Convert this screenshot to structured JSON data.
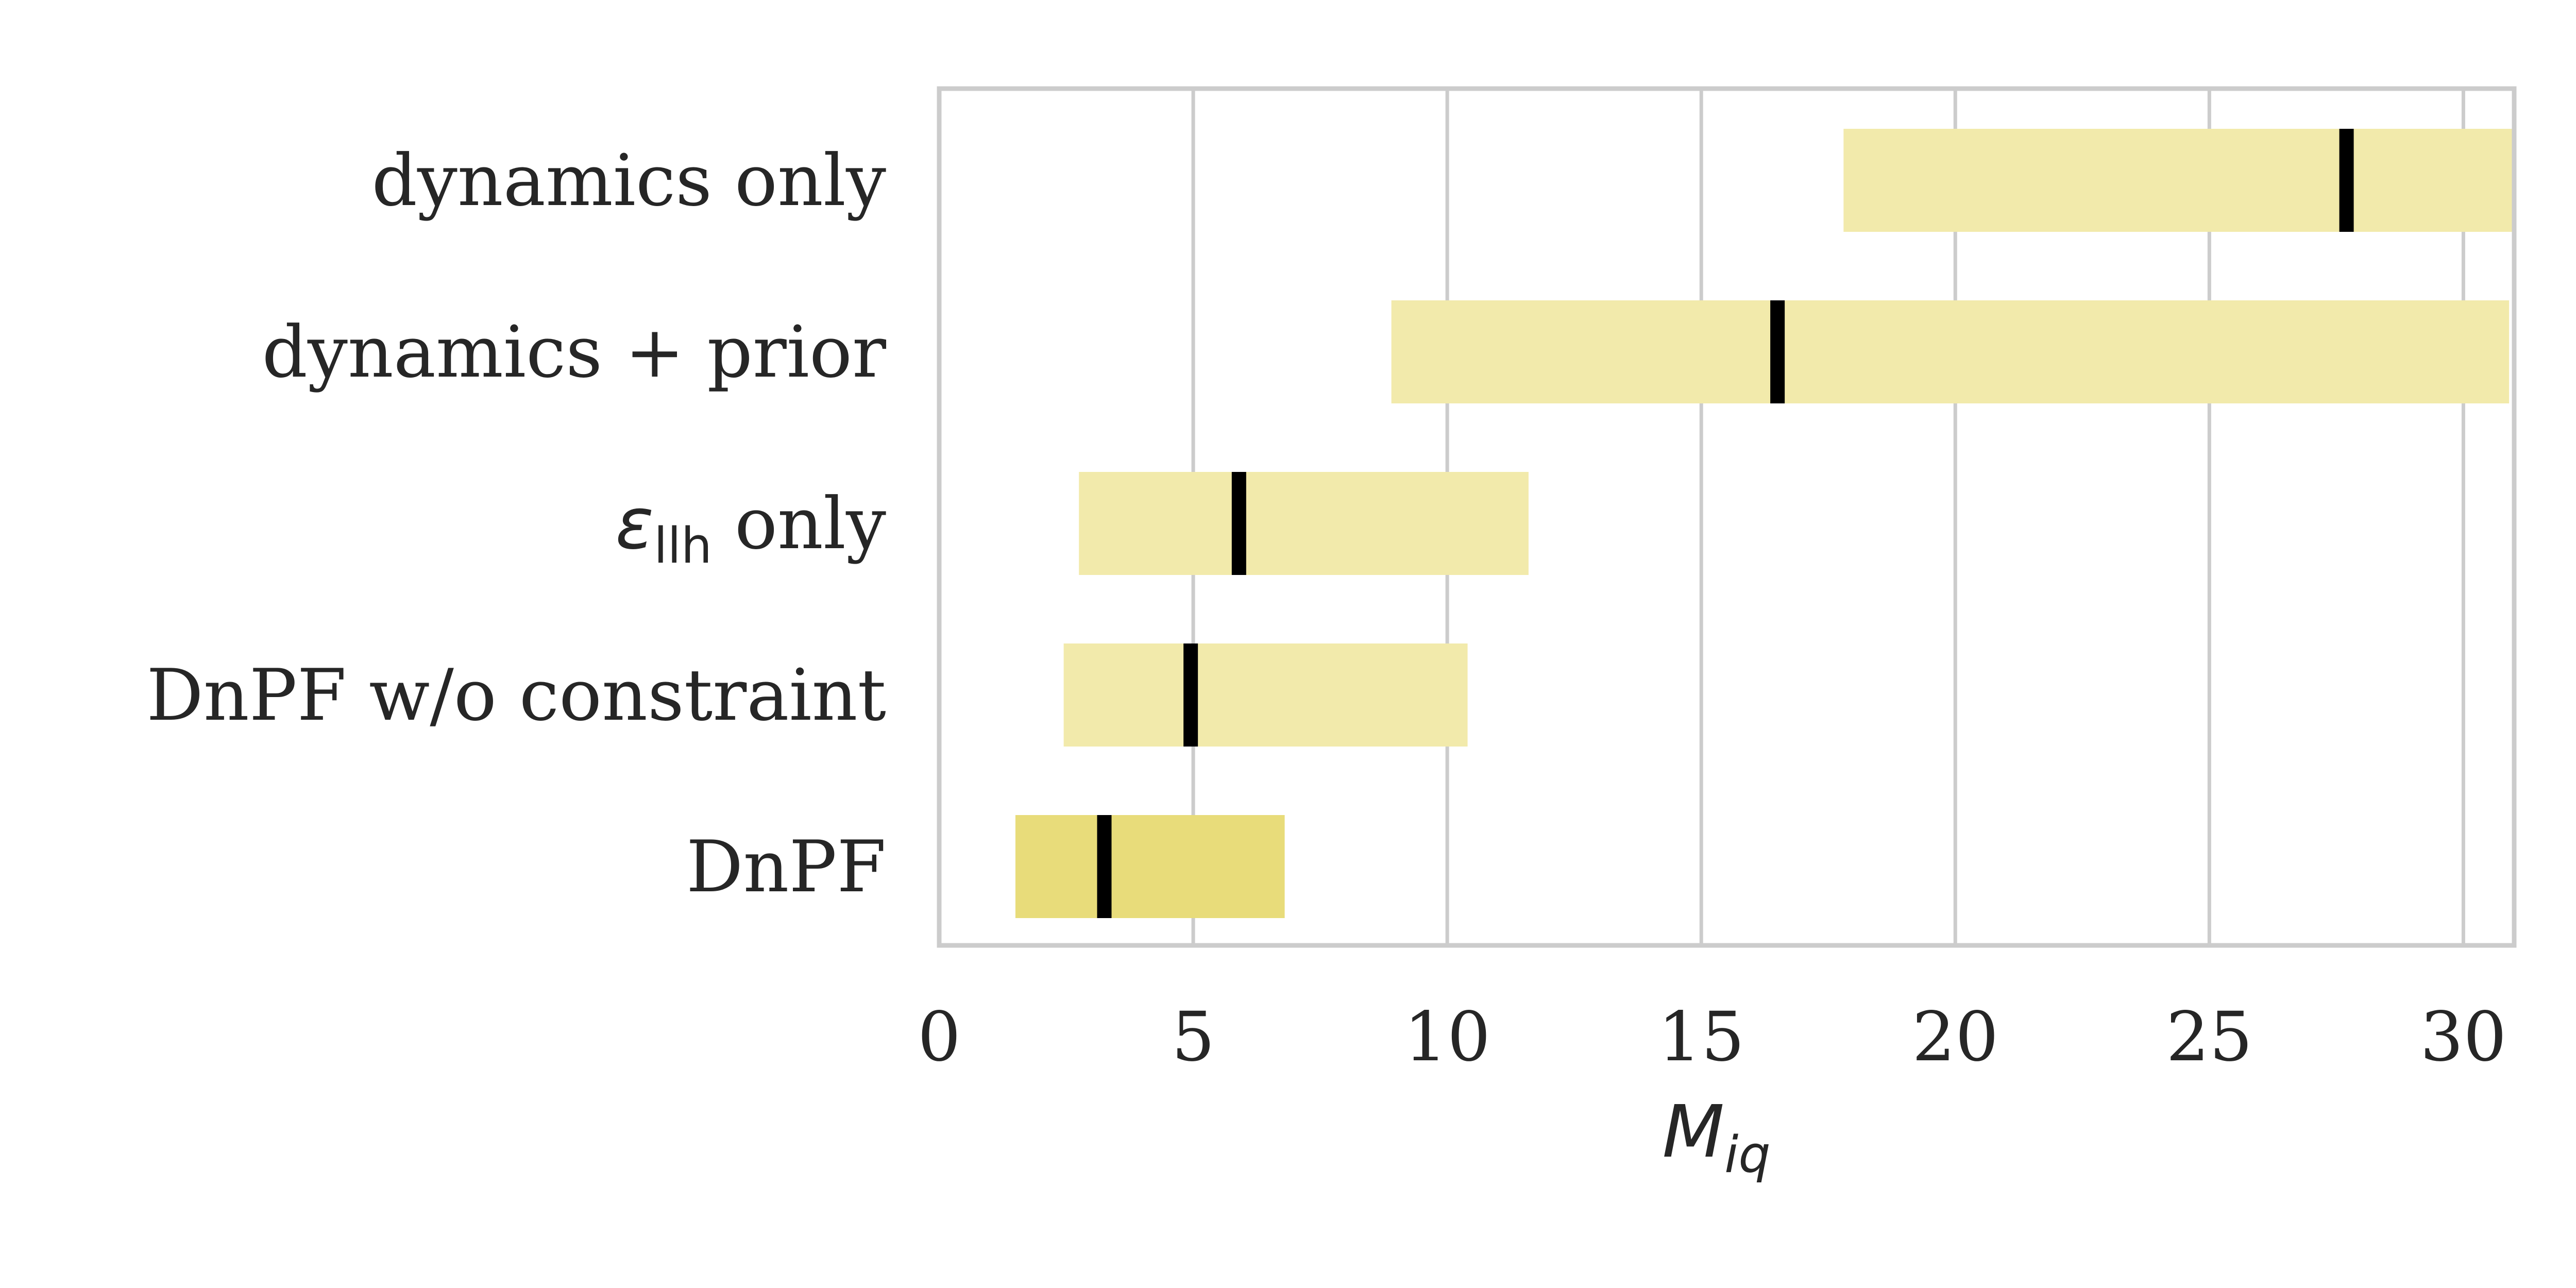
{
  "chart_data": {
    "type": "bar",
    "orientation": "horizontal",
    "categories": [
      "dynamics only",
      "dynamics + prior",
      "ε_llh only",
      "DnPF w/o constraint",
      "DnPF"
    ],
    "category_display": [
      {
        "main": "dynamics only"
      },
      {
        "main": "dynamics + prior"
      },
      {
        "symbol": "ε",
        "sub": "llh",
        "main": " only"
      },
      {
        "main": "DnPF w/o constraint"
      },
      {
        "main": "DnPF"
      }
    ],
    "intervals": [
      {
        "low": 17.8,
        "high": 31.0,
        "median": 27.7
      },
      {
        "low": 8.9,
        "high": 30.9,
        "median": 16.5
      },
      {
        "low": 2.75,
        "high": 11.6,
        "median": 5.9
      },
      {
        "low": 2.45,
        "high": 10.4,
        "median": 4.95
      },
      {
        "low": 1.5,
        "high": 6.8,
        "median": 3.25
      }
    ],
    "highlight_index": 4,
    "xlabel": {
      "main": "M",
      "sub": "iq"
    },
    "xticks": [
      "0",
      "5",
      "10",
      "15",
      "20",
      "25",
      "30"
    ],
    "xlim": [
      0,
      31
    ],
    "grid": "vertical",
    "colors": {
      "bar": "#f2eaab",
      "bar_highlight": "#e8dc7a",
      "median": "#000000",
      "grid": "#cccccc",
      "text": "#262626"
    }
  }
}
